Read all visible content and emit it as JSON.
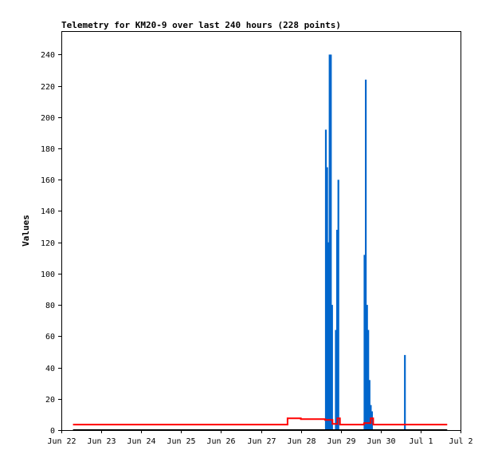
{
  "chart_data": {
    "type": "bar",
    "title": "Telemetry for KM20-9 over last 240 hours (228 points)",
    "ylabel": "Values",
    "xlabel": "",
    "ylim": [
      0,
      255
    ],
    "xlim": [
      "2024-06-22 00:00",
      "2024-07-02 00:00"
    ],
    "x_tick_labels": [
      "Jun 22",
      "Jun 23",
      "Jun 24",
      "Jun 25",
      "Jun 26",
      "Jun 27",
      "Jun 28",
      "Jun 29",
      "Jun 30",
      "Jul 1",
      "Jul 2"
    ],
    "y_ticks": [
      0,
      20,
      40,
      60,
      80,
      100,
      120,
      140,
      160,
      180,
      200,
      220,
      240
    ],
    "grid": false,
    "series": [
      {
        "type": "bar",
        "color": "#0066cc",
        "points": [
          [
            "2024-06-28 15:00",
            192
          ],
          [
            "2024-06-28 15:45",
            168
          ],
          [
            "2024-06-28 16:30",
            120
          ],
          [
            "2024-06-28 17:15",
            240
          ],
          [
            "2024-06-28 18:00",
            240
          ],
          [
            "2024-06-28 18:45",
            80
          ],
          [
            "2024-06-28 21:00",
            64
          ],
          [
            "2024-06-28 21:45",
            128
          ],
          [
            "2024-06-28 22:30",
            160
          ],
          [
            "2024-06-29 14:15",
            112
          ],
          [
            "2024-06-29 15:00",
            224
          ],
          [
            "2024-06-29 15:45",
            80
          ],
          [
            "2024-06-29 16:30",
            64
          ],
          [
            "2024-06-29 17:15",
            32
          ],
          [
            "2024-06-29 18:00",
            16
          ],
          [
            "2024-06-29 18:45",
            12
          ],
          [
            "2024-06-30 14:30",
            48
          ]
        ]
      },
      {
        "type": "step",
        "color": "#ff0000",
        "points": [
          [
            "2024-06-22 07:00",
            3.5
          ],
          [
            "2024-06-27 15:30",
            3.5
          ],
          [
            "2024-06-27 16:00",
            7.5
          ],
          [
            "2024-06-28 00:00",
            7.0
          ],
          [
            "2024-06-28 14:30",
            6.5
          ],
          [
            "2024-06-28 19:00",
            4.0
          ],
          [
            "2024-06-28 22:00",
            7.5
          ],
          [
            "2024-06-28 23:30",
            3.5
          ],
          [
            "2024-06-29 14:00",
            4.5
          ],
          [
            "2024-06-29 18:00",
            7.5
          ],
          [
            "2024-06-29 19:30",
            3.5
          ],
          [
            "2024-07-01 16:00",
            3.5
          ]
        ]
      },
      {
        "type": "line",
        "color": "#000000",
        "points": [
          [
            "2024-06-22 07:00",
            0
          ],
          [
            "2024-07-01 16:00",
            0
          ]
        ]
      }
    ]
  }
}
